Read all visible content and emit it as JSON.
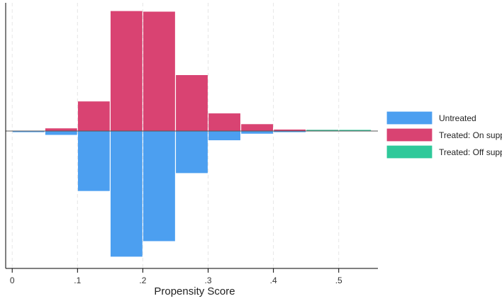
{
  "chart_data": {
    "type": "bar",
    "title": "",
    "xlabel": "Propensity Score",
    "ylabel": "",
    "xlim": [
      -0.01,
      0.56
    ],
    "ylim": [
      -0.21,
      0.21
    ],
    "x_ticks": [
      0,
      0.1,
      0.2,
      0.3,
      0.4,
      0.5
    ],
    "x_tick_labels": [
      "0",
      ".1",
      ".2",
      ".3",
      ".4",
      ".5"
    ],
    "grid": "vertical dashed",
    "legend_position": "right",
    "colors": {
      "untreated": "#4c9ff0",
      "treated_on": "#d94372",
      "treated_off": "#2fc99a"
    },
    "series": [
      {
        "name": "Untreated",
        "direction": "below",
        "bins": [
          {
            "x0": 0.0,
            "x1": 0.05,
            "value": 0.001
          },
          {
            "x0": 0.05,
            "x1": 0.1,
            "value": 0.006
          },
          {
            "x0": 0.1,
            "x1": 0.15,
            "value": 0.1
          },
          {
            "x0": 0.15,
            "x1": 0.2,
            "value": 0.21
          },
          {
            "x0": 0.2,
            "x1": 0.25,
            "value": 0.184
          },
          {
            "x0": 0.25,
            "x1": 0.3,
            "value": 0.07
          },
          {
            "x0": 0.3,
            "x1": 0.35,
            "value": 0.015
          },
          {
            "x0": 0.35,
            "x1": 0.4,
            "value": 0.004
          },
          {
            "x0": 0.4,
            "x1": 0.45,
            "value": 0.001
          }
        ]
      },
      {
        "name": "Treated: On support",
        "direction": "above",
        "bins": [
          {
            "x0": 0.05,
            "x1": 0.1,
            "value": 0.004
          },
          {
            "x0": 0.1,
            "x1": 0.15,
            "value": 0.049
          },
          {
            "x0": 0.15,
            "x1": 0.2,
            "value": 0.2
          },
          {
            "x0": 0.2,
            "x1": 0.25,
            "value": 0.199
          },
          {
            "x0": 0.25,
            "x1": 0.3,
            "value": 0.093
          },
          {
            "x0": 0.3,
            "x1": 0.35,
            "value": 0.029
          },
          {
            "x0": 0.35,
            "x1": 0.4,
            "value": 0.011
          },
          {
            "x0": 0.4,
            "x1": 0.45,
            "value": 0.002
          },
          {
            "x0": 0.45,
            "x1": 0.5,
            "value": 0.0005
          }
        ]
      },
      {
        "name": "Treated: Off support",
        "direction": "above",
        "bins": [
          {
            "x0": 0.45,
            "x1": 0.5,
            "value": 0.001
          },
          {
            "x0": 0.5,
            "x1": 0.55,
            "value": 0.001
          }
        ]
      }
    ]
  }
}
